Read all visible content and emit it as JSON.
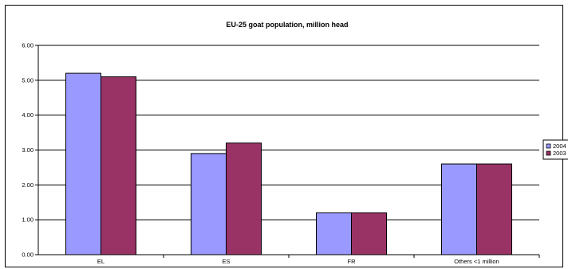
{
  "chart_data": {
    "type": "bar",
    "title": "EU-25 goat population, million head",
    "xlabel": "",
    "ylabel": "",
    "categories": [
      "EL",
      "ES",
      "FR",
      "Others <1 million"
    ],
    "series": [
      {
        "name": "2004",
        "values": [
          5.2,
          2.9,
          1.2,
          2.6
        ],
        "color": "#9999FF"
      },
      {
        "name": "2003",
        "values": [
          5.1,
          3.2,
          1.2,
          2.6
        ],
        "color": "#993366"
      }
    ],
    "ylim": [
      0,
      6
    ],
    "yticks": [
      "0.00",
      "1.00",
      "2.00",
      "3.00",
      "4.00",
      "5.00",
      "6.00"
    ],
    "grid": true,
    "legend_position": "right"
  }
}
